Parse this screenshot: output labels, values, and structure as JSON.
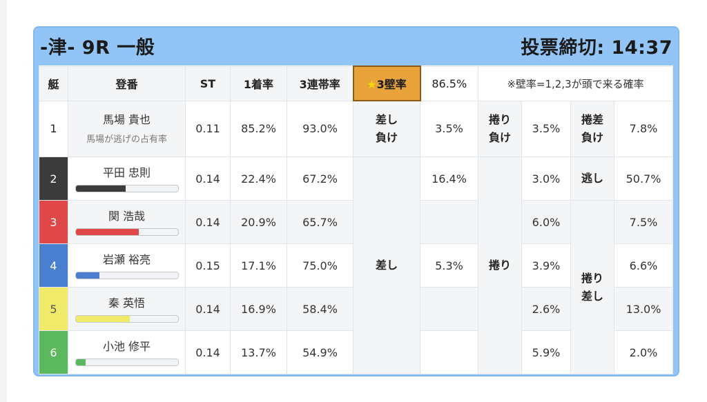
{
  "header": {
    "title": "-津- 9R 一般",
    "deadline": "投票締切: 14:37"
  },
  "columns": {
    "lane": "艇",
    "racer": "登番",
    "st": "ST",
    "win": "1着率",
    "top3": "3連帯率",
    "wall_star": "★",
    "wall": "3壁率",
    "wall_value": "86.5%",
    "note": "※壁率=1,2,3が頭で来る確率"
  },
  "racers": [
    {
      "lane": "1",
      "name": "馬場 貴也",
      "sub": "馬場が逃げの占有率",
      "st": "0.11",
      "win": "85.2%",
      "top3": "93.0%",
      "color": "#ffffff"
    },
    {
      "lane": "2",
      "name": "平田 忠則",
      "st": "0.14",
      "win": "22.4%",
      "top3": "67.2%",
      "bar": 0.49,
      "color": "#3b3b3b"
    },
    {
      "lane": "3",
      "name": "関 浩哉",
      "st": "0.14",
      "win": "20.9%",
      "top3": "65.7%",
      "bar": 0.62,
      "color": "#e04848"
    },
    {
      "lane": "4",
      "name": "岩瀬 裕亮",
      "st": "0.15",
      "win": "17.1%",
      "top3": "75.0%",
      "bar": 0.23,
      "color": "#4a7fd0"
    },
    {
      "lane": "5",
      "name": "秦 英悟",
      "st": "0.14",
      "win": "16.9%",
      "top3": "58.4%",
      "bar": 0.53,
      "color": "#f0ea6a"
    },
    {
      "lane": "6",
      "name": "小池 修平",
      "st": "0.14",
      "win": "13.7%",
      "top3": "54.9%",
      "bar": 0.1,
      "color": "#5cb85c"
    }
  ],
  "patterns": {
    "sashi_make": "差し\n負け",
    "sashi_make_value": "3.5%",
    "makuri_make": "捲り\n負け",
    "makuri_make_value": "3.5%",
    "makurisashi_make": "捲差\n負け",
    "makurisashi_make_value": "7.8%",
    "sashi": "差し",
    "makuri": "捲り",
    "nige": "逃し",
    "makurisashi": "捲り\n差し",
    "sashi_values": [
      "16.4%",
      "",
      "5.3%",
      "",
      ""
    ],
    "makuri_values": [
      "3.0%",
      "6.0%",
      "3.9%",
      "2.6%",
      "5.9%"
    ],
    "nige_value": "50.7%",
    "makurisashi_values": [
      "7.5%",
      "6.6%",
      "13.0%",
      "2.0%"
    ]
  },
  "colors": {
    "header_bg": "#92c5f5",
    "wall_highlight": "#e8a43a",
    "star": "#f5d90a"
  }
}
